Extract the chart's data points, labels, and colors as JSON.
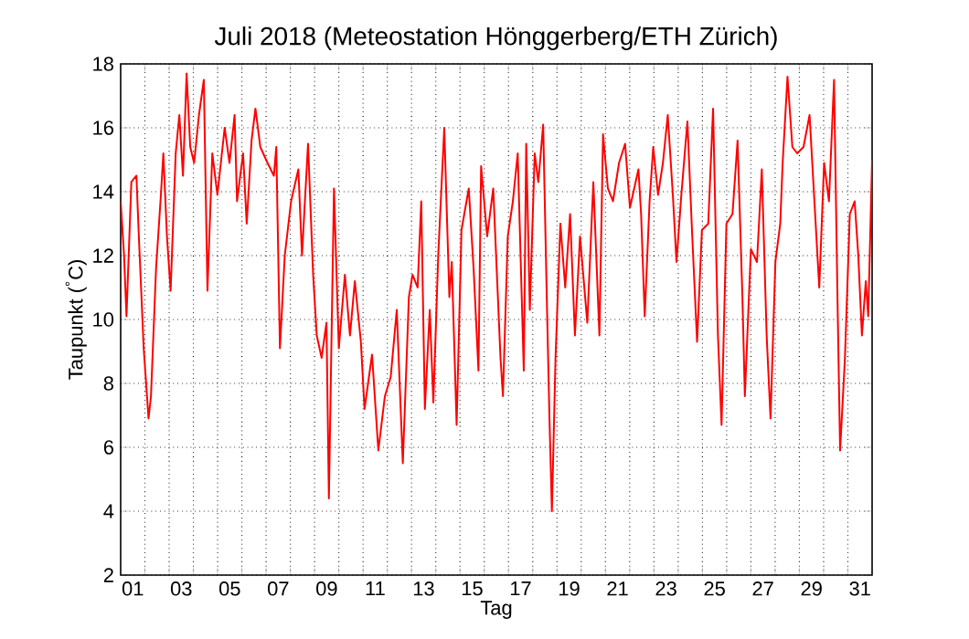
{
  "chart_data": {
    "type": "line",
    "title": "Juli 2018  (Meteostation Hönggerberg/ETH Zürich)",
    "xlabel": "Tag",
    "ylabel": "Taupunkt ($^{°}$C)",
    "xlim": [
      1,
      32
    ],
    "ylim": [
      2,
      18
    ],
    "xticks": [
      {
        "value": 1.5,
        "label": "01"
      },
      {
        "value": 3.5,
        "label": "03"
      },
      {
        "value": 5.5,
        "label": "05"
      },
      {
        "value": 7.5,
        "label": "07"
      },
      {
        "value": 9.5,
        "label": "09"
      },
      {
        "value": 11.5,
        "label": "11"
      },
      {
        "value": 13.5,
        "label": "13"
      },
      {
        "value": 15.5,
        "label": "15"
      },
      {
        "value": 17.5,
        "label": "17"
      },
      {
        "value": 19.5,
        "label": "19"
      },
      {
        "value": 21.5,
        "label": "21"
      },
      {
        "value": 23.5,
        "label": "23"
      },
      {
        "value": 25.5,
        "label": "25"
      },
      {
        "value": 27.5,
        "label": "27"
      },
      {
        "value": 29.5,
        "label": "29"
      },
      {
        "value": 31.5,
        "label": "31"
      },
      {
        "value": 2,
        "label": null
      },
      {
        "value": 3,
        "label": null
      },
      {
        "value": 4,
        "label": null
      },
      {
        "value": 5,
        "label": null
      },
      {
        "value": 6,
        "label": null
      },
      {
        "value": 7,
        "label": null
      },
      {
        "value": 8,
        "label": null
      },
      {
        "value": 9,
        "label": null
      },
      {
        "value": 10,
        "label": null
      },
      {
        "value": 11,
        "label": null
      },
      {
        "value": 12,
        "label": null
      },
      {
        "value": 13,
        "label": null
      },
      {
        "value": 14,
        "label": null
      },
      {
        "value": 15,
        "label": null
      },
      {
        "value": 16,
        "label": null
      },
      {
        "value": 17,
        "label": null
      },
      {
        "value": 18,
        "label": null
      },
      {
        "value": 19,
        "label": null
      },
      {
        "value": 20,
        "label": null
      },
      {
        "value": 21,
        "label": null
      },
      {
        "value": 22,
        "label": null
      },
      {
        "value": 23,
        "label": null
      },
      {
        "value": 24,
        "label": null
      },
      {
        "value": 25,
        "label": null
      },
      {
        "value": 26,
        "label": null
      },
      {
        "value": 27,
        "label": null
      },
      {
        "value": 28,
        "label": null
      },
      {
        "value": 29,
        "label": null
      },
      {
        "value": 30,
        "label": null
      },
      {
        "value": 31,
        "label": null
      }
    ],
    "yticks": [
      2,
      4,
      6,
      8,
      10,
      12,
      14,
      16,
      18
    ],
    "grid": true,
    "marker": "none",
    "line_style": "solid",
    "series": [
      {
        "color": "#ff0000",
        "x": [
          1.0,
          1.14,
          1.24,
          1.44,
          1.65,
          1.75,
          1.95,
          2.15,
          2.25,
          2.46,
          2.66,
          2.76,
          2.91,
          3.06,
          3.27,
          3.42,
          3.57,
          3.72,
          3.87,
          4.03,
          4.23,
          4.43,
          4.58,
          4.78,
          4.99,
          5.29,
          5.49,
          5.7,
          5.8,
          6.05,
          6.2,
          6.4,
          6.56,
          6.76,
          7.06,
          7.32,
          7.42,
          7.57,
          7.77,
          8.03,
          8.33,
          8.48,
          8.73,
          8.94,
          9.09,
          9.29,
          9.49,
          9.59,
          9.8,
          10.0,
          10.25,
          10.46,
          10.66,
          10.91,
          11.06,
          11.37,
          11.63,
          11.9,
          12.14,
          12.39,
          12.64,
          12.89,
          13.04,
          13.25,
          13.4,
          13.55,
          13.75,
          13.9,
          14.1,
          14.35,
          14.56,
          14.66,
          14.86,
          15.06,
          15.36,
          15.56,
          15.76,
          15.87,
          16.12,
          16.37,
          16.67,
          16.77,
          16.97,
          17.18,
          17.38,
          17.63,
          17.73,
          17.88,
          18.08,
          18.23,
          18.43,
          18.59,
          18.69,
          18.79,
          18.94,
          19.14,
          19.34,
          19.54,
          19.74,
          19.95,
          20.25,
          20.5,
          20.75,
          20.9,
          21.1,
          21.31,
          21.56,
          21.81,
          22.01,
          22.36,
          22.47,
          22.62,
          22.82,
          22.97,
          23.17,
          23.37,
          23.57,
          23.78,
          23.93,
          24.13,
          24.38,
          24.58,
          24.78,
          24.98,
          25.24,
          25.44,
          25.64,
          25.79,
          25.99,
          26.24,
          26.45,
          26.65,
          26.75,
          27.0,
          27.25,
          27.45,
          27.65,
          27.81,
          28.01,
          28.21,
          28.31,
          28.51,
          28.71,
          28.91,
          29.17,
          29.42,
          29.62,
          29.82,
          30.02,
          30.22,
          30.43,
          30.58,
          30.68,
          30.88,
          31.08,
          31.28,
          31.43,
          31.58,
          31.74,
          31.84,
          32.0
        ],
        "values": [
          13.7,
          12.0,
          10.1,
          14.3,
          14.5,
          12.6,
          9.1,
          6.9,
          7.6,
          11.6,
          13.9,
          15.2,
          12.6,
          10.9,
          15.2,
          16.4,
          14.5,
          17.7,
          15.4,
          14.9,
          16.4,
          17.5,
          10.9,
          15.2,
          13.9,
          16.0,
          14.9,
          16.4,
          13.7,
          15.2,
          13.0,
          15.6,
          16.6,
          15.4,
          14.9,
          14.5,
          15.4,
          9.1,
          12.0,
          13.7,
          14.7,
          12.0,
          15.5,
          11.4,
          9.5,
          8.8,
          9.9,
          4.4,
          14.1,
          9.1,
          11.4,
          9.5,
          11.2,
          9.3,
          7.2,
          8.9,
          5.9,
          7.6,
          8.2,
          10.3,
          5.5,
          10.7,
          11.4,
          11.0,
          13.7,
          7.2,
          10.3,
          7.4,
          12.0,
          16.0,
          10.7,
          11.8,
          6.7,
          12.8,
          14.1,
          11.6,
          8.4,
          14.8,
          12.6,
          14.1,
          8.8,
          7.6,
          12.6,
          13.7,
          15.2,
          8.4,
          15.5,
          10.3,
          15.2,
          14.3,
          16.1,
          10.3,
          6.9,
          4.0,
          8.8,
          13.0,
          11.0,
          13.3,
          9.5,
          12.6,
          9.9,
          14.3,
          9.5,
          15.8,
          14.1,
          13.7,
          14.9,
          15.5,
          13.5,
          14.7,
          13.3,
          10.1,
          13.7,
          15.4,
          13.9,
          14.9,
          16.4,
          13.9,
          11.8,
          13.9,
          16.2,
          12.6,
          9.3,
          12.8,
          13.0,
          16.6,
          9.5,
          6.7,
          13.0,
          13.3,
          15.6,
          10.7,
          7.6,
          12.2,
          11.8,
          14.7,
          9.5,
          6.9,
          11.8,
          13.0,
          14.9,
          17.6,
          15.4,
          15.2,
          15.4,
          16.4,
          13.7,
          11.0,
          14.9,
          13.7,
          17.5,
          10.3,
          5.9,
          8.8,
          13.3,
          13.7,
          12.0,
          9.5,
          11.2,
          10.1,
          15.0
        ]
      }
    ]
  }
}
